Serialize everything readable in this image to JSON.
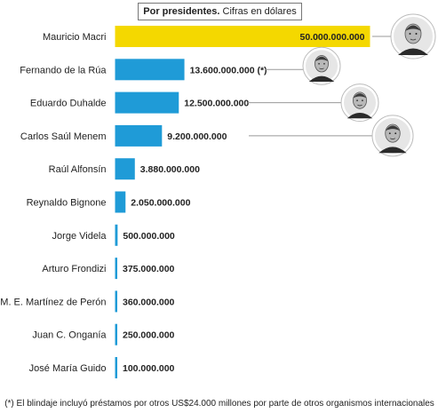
{
  "header": {
    "title_bold": "Por presidentes.",
    "title_rest": "Cifras en dólares"
  },
  "chart_data": {
    "type": "bar",
    "orientation": "horizontal",
    "title": "Por presidentes. Cifras en dólares",
    "categories": [
      "Mauricio Macri",
      "Fernando de la Rúa",
      "Eduardo Duhalde",
      "Carlos Saúl Menem",
      "Raúl Alfonsín",
      "Reynaldo Bignone",
      "Jorge Videla",
      "Arturo Frondizi",
      "M. E. Martínez de Perón",
      "Juan C. Onganía",
      "José María Guido"
    ],
    "values": [
      50000000000,
      13600000000,
      12500000000,
      9200000000,
      3880000000,
      2050000000,
      500000000,
      375000000,
      360000000,
      250000000,
      100000000
    ],
    "value_labels": [
      "50.000.000.000",
      "13.600.000.000 (*)",
      "12.500.000.000",
      "9.200.000.000",
      "3.880.000.000",
      "2.050.000.000",
      "500.000.000",
      "375.000.000",
      "360.000.000",
      "250.000.000",
      "100.000.000"
    ],
    "highlight_index": 0,
    "grid": false,
    "legend": "none"
  },
  "colors": {
    "bar": "#1f9bd7",
    "highlight": "#f4d800",
    "leader": "#999999",
    "portrait_bg": "#e6e6e6",
    "portrait_ink": "#2a2a2a"
  },
  "portraits": [
    {
      "icon": "portrait-macri-icon",
      "bar_index": 0
    },
    {
      "icon": "portrait-delarua-icon",
      "bar_index": 1
    },
    {
      "icon": "portrait-duhalde-icon",
      "bar_index": 2
    },
    {
      "icon": "portrait-menem-icon",
      "bar_index": 3
    }
  ],
  "footnote": "(*) El blindaje incluyó préstamos por otros US$24.000 millones por parte de otros organismos internacionales"
}
